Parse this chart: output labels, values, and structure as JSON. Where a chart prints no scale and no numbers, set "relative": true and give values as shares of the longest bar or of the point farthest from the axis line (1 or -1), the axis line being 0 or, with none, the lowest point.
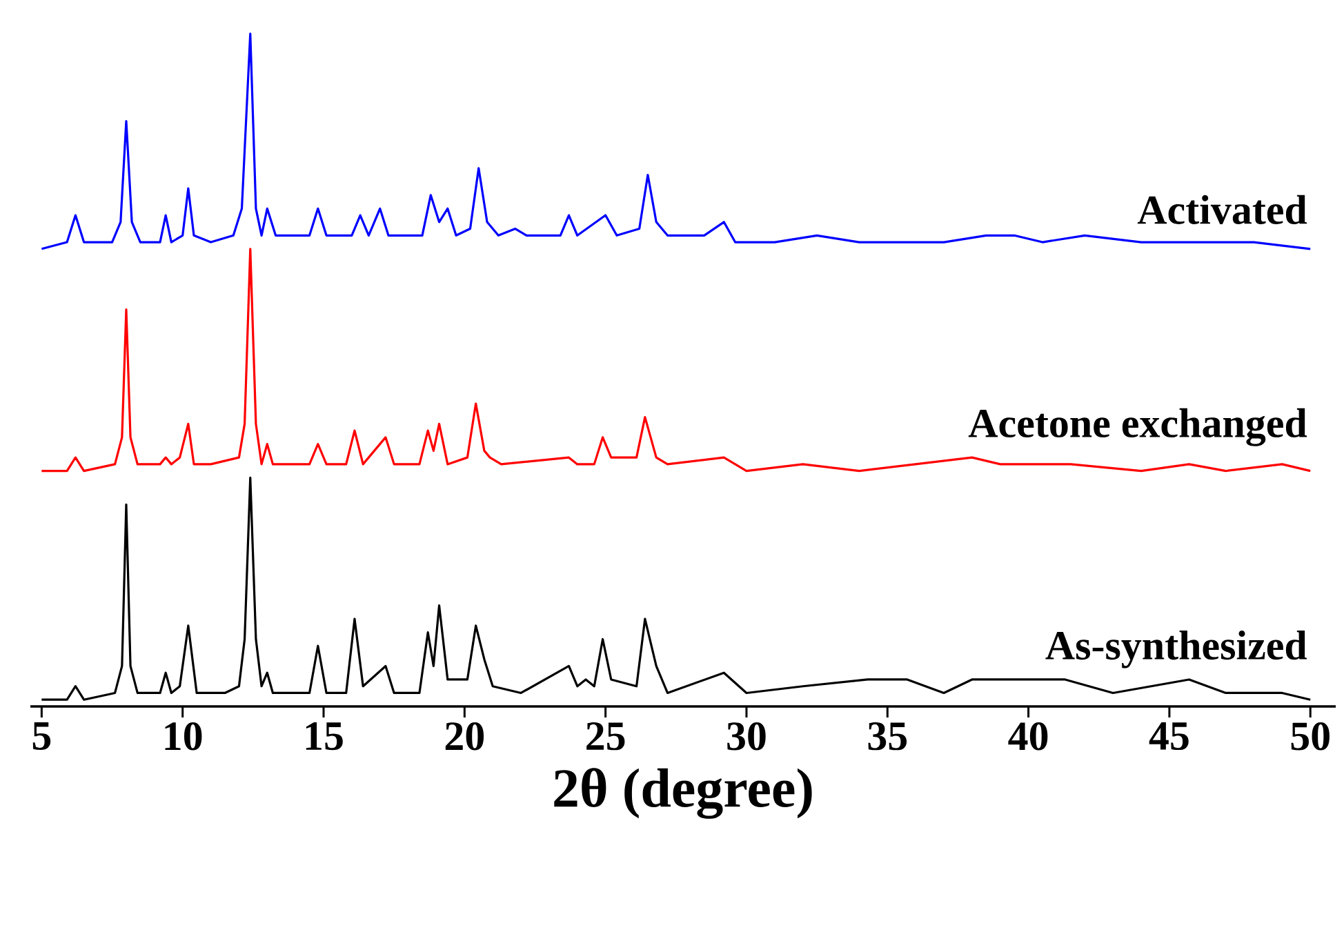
{
  "chart_data": {
    "type": "line",
    "relative": true,
    "xlabel": "2θ (degree)",
    "xlim": [
      4.6,
      50.9
    ],
    "xticks": [
      5,
      10,
      15,
      20,
      25,
      30,
      35,
      40,
      45,
      50
    ],
    "grid": false,
    "marker": "none",
    "line_style": "solid",
    "series": [
      {
        "name": "Activated",
        "color": "#0000ff",
        "x": [
          5.0,
          5.9,
          6.2,
          6.5,
          7.5,
          7.8,
          8.0,
          8.2,
          8.5,
          9.2,
          9.4,
          9.6,
          10.0,
          10.2,
          10.4,
          11.0,
          11.8,
          12.1,
          12.4,
          12.6,
          12.8,
          13.0,
          13.3,
          14.5,
          14.8,
          15.1,
          16.0,
          16.3,
          16.6,
          17.0,
          17.3,
          18.5,
          18.8,
          19.1,
          19.4,
          19.7,
          20.2,
          20.5,
          20.8,
          21.2,
          21.8,
          22.2,
          23.4,
          23.7,
          24.0,
          25.0,
          25.4,
          26.2,
          26.5,
          26.8,
          27.2,
          28.5,
          29.2,
          29.6,
          31,
          32.5,
          34,
          35,
          37,
          38.5,
          39.5,
          40.5,
          42,
          44,
          46,
          48,
          50
        ],
        "values": [
          0.68,
          0.69,
          0.73,
          0.69,
          0.69,
          0.72,
          0.87,
          0.72,
          0.69,
          0.69,
          0.73,
          0.69,
          0.7,
          0.77,
          0.7,
          0.69,
          0.7,
          0.74,
          1.0,
          0.74,
          0.7,
          0.74,
          0.7,
          0.7,
          0.74,
          0.7,
          0.7,
          0.73,
          0.7,
          0.74,
          0.7,
          0.7,
          0.76,
          0.72,
          0.74,
          0.7,
          0.71,
          0.8,
          0.72,
          0.7,
          0.71,
          0.7,
          0.7,
          0.73,
          0.7,
          0.73,
          0.7,
          0.71,
          0.79,
          0.72,
          0.7,
          0.7,
          0.72,
          0.69,
          0.69,
          0.7,
          0.69,
          0.69,
          0.69,
          0.7,
          0.7,
          0.69,
          0.7,
          0.69,
          0.69,
          0.69,
          0.68
        ]
      },
      {
        "name": "Acetone exchanged",
        "color": "#ff0000",
        "x": [
          5.0,
          5.9,
          6.2,
          6.5,
          7.6,
          7.85,
          8.0,
          8.15,
          8.4,
          9.2,
          9.4,
          9.6,
          9.9,
          10.2,
          10.4,
          11.0,
          12.0,
          12.2,
          12.4,
          12.6,
          12.8,
          13.0,
          13.2,
          14.5,
          14.8,
          15.1,
          15.8,
          16.1,
          16.4,
          17.2,
          17.5,
          18.4,
          18.7,
          18.9,
          19.1,
          19.4,
          20.1,
          20.4,
          20.7,
          20.9,
          21.3,
          23.7,
          24.0,
          24.6,
          24.9,
          25.2,
          26.1,
          26.4,
          26.8,
          27.2,
          29.2,
          30,
          32,
          34,
          36,
          38,
          39,
          41.5,
          44,
          45.7,
          47,
          49,
          50
        ],
        "values": [
          0.35,
          0.35,
          0.37,
          0.35,
          0.36,
          0.4,
          0.59,
          0.4,
          0.36,
          0.36,
          0.37,
          0.36,
          0.37,
          0.42,
          0.36,
          0.36,
          0.37,
          0.42,
          0.68,
          0.42,
          0.36,
          0.39,
          0.36,
          0.36,
          0.39,
          0.36,
          0.36,
          0.41,
          0.36,
          0.4,
          0.36,
          0.36,
          0.41,
          0.38,
          0.42,
          0.36,
          0.37,
          0.45,
          0.38,
          0.37,
          0.36,
          0.37,
          0.36,
          0.36,
          0.4,
          0.37,
          0.37,
          0.43,
          0.37,
          0.36,
          0.37,
          0.35,
          0.36,
          0.35,
          0.36,
          0.37,
          0.36,
          0.36,
          0.35,
          0.36,
          0.35,
          0.36,
          0.35
        ]
      },
      {
        "name": "As-synthesized",
        "color": "#000000",
        "x": [
          5.0,
          5.9,
          6.2,
          6.5,
          7.6,
          7.85,
          8.0,
          8.15,
          8.4,
          9.2,
          9.4,
          9.6,
          9.9,
          10.2,
          10.5,
          11.5,
          12.0,
          12.2,
          12.4,
          12.6,
          12.8,
          13.0,
          13.2,
          14.5,
          14.8,
          15.1,
          15.8,
          16.1,
          16.4,
          17.2,
          17.5,
          18.4,
          18.7,
          18.9,
          19.1,
          19.4,
          20.1,
          20.4,
          20.7,
          21.0,
          22,
          23.7,
          24.0,
          24.3,
          24.6,
          24.9,
          25.2,
          26.1,
          26.4,
          26.8,
          27.2,
          29.2,
          30,
          32,
          34.3,
          35.7,
          37,
          38,
          39.5,
          41.3,
          43,
          45.7,
          47,
          49,
          50
        ],
        "values": [
          0.01,
          0.01,
          0.03,
          0.01,
          0.02,
          0.06,
          0.3,
          0.06,
          0.02,
          0.02,
          0.05,
          0.02,
          0.03,
          0.12,
          0.02,
          0.02,
          0.03,
          0.1,
          0.34,
          0.1,
          0.03,
          0.05,
          0.02,
          0.02,
          0.09,
          0.02,
          0.02,
          0.13,
          0.03,
          0.06,
          0.02,
          0.02,
          0.11,
          0.06,
          0.15,
          0.04,
          0.04,
          0.12,
          0.07,
          0.03,
          0.02,
          0.06,
          0.03,
          0.04,
          0.03,
          0.1,
          0.04,
          0.03,
          0.13,
          0.06,
          0.02,
          0.05,
          0.02,
          0.03,
          0.04,
          0.04,
          0.02,
          0.04,
          0.04,
          0.04,
          0.02,
          0.04,
          0.02,
          0.02,
          0.01
        ]
      }
    ]
  }
}
